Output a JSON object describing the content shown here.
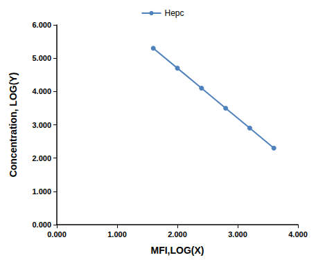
{
  "chart_data": {
    "type": "line",
    "x_label": "MFI,LOG(X)",
    "y_label": "Concentration, LOG(Y)",
    "series": [
      {
        "name": "Hepc",
        "color": "#4f81bd",
        "marker": "circle",
        "line_style": "solid",
        "x": [
          1.6,
          2.0,
          2.4,
          2.8,
          3.2,
          3.6
        ],
        "values": [
          5.3,
          4.7,
          4.1,
          3.5,
          2.9,
          2.3
        ]
      }
    ],
    "xlim": [
      0,
      4
    ],
    "xticks": [
      {
        "value": 0,
        "label": "0.000"
      },
      {
        "value": 1,
        "label": "1.000"
      },
      {
        "value": 2,
        "label": "2.000"
      },
      {
        "value": 3,
        "label": "3.000"
      },
      {
        "value": 4,
        "label": "4.000"
      }
    ],
    "ylim": [
      0,
      6
    ],
    "yticks": [
      {
        "value": 0,
        "label": "0.000"
      },
      {
        "value": 1,
        "label": "1.000"
      },
      {
        "value": 2,
        "label": "2.000"
      },
      {
        "value": 3,
        "label": "3.000"
      },
      {
        "value": 4,
        "label": "4.000"
      },
      {
        "value": 5,
        "label": "5.000"
      },
      {
        "value": 6,
        "label": "6.000"
      }
    ],
    "grid": false,
    "legend": "top"
  }
}
